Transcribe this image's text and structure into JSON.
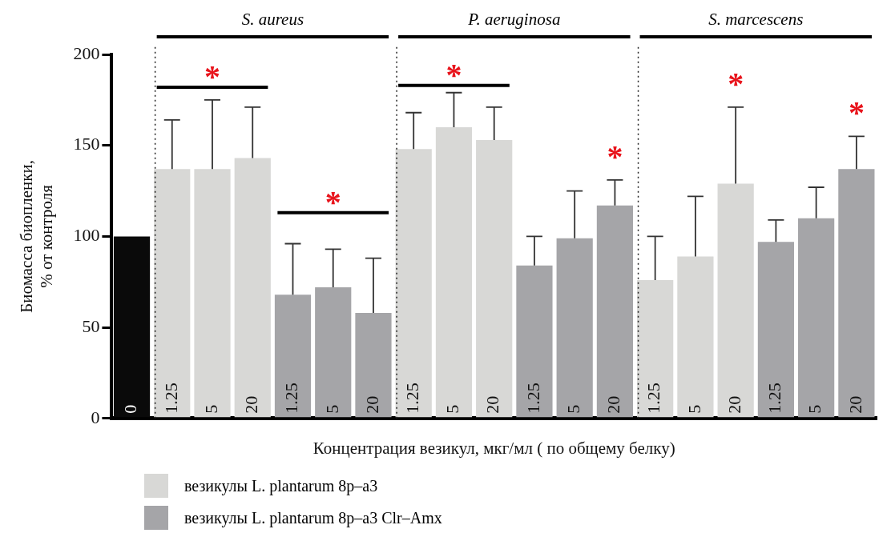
{
  "chart_data": {
    "type": "bar",
    "xlabel": "Концентрация везикул, мкг/мл ( по общему белку)",
    "ylabel": "Биомасса биопленки,\n% от контроля",
    "categories": [
      "0",
      "1.25",
      "5",
      "20",
      "1.25",
      "5",
      "20",
      "1.25",
      "5",
      "20",
      "1.25",
      "5",
      "20",
      "1.25",
      "5",
      "20",
      "1.25",
      "5",
      "20"
    ],
    "series": [
      {
        "color": "#0a0a0a",
        "values": [
          100,
          null,
          null,
          null,
          null,
          null,
          null,
          null,
          null,
          null,
          null,
          null,
          null,
          null,
          null,
          null,
          null,
          null,
          null
        ]
      },
      {
        "name": "везикулы L. plantarum 8p–a3",
        "color": "#d8d8d6",
        "values": [
          null,
          137,
          137,
          143,
          null,
          null,
          null,
          148,
          160,
          153,
          null,
          null,
          null,
          76,
          89,
          129,
          null,
          null,
          null
        ],
        "errors": [
          null,
          [
            137,
            164
          ],
          [
            137,
            175
          ],
          [
            143,
            171
          ],
          null,
          null,
          null,
          [
            148,
            168
          ],
          [
            160,
            179
          ],
          [
            153,
            171
          ],
          null,
          null,
          null,
          [
            76,
            100
          ],
          [
            89,
            122
          ],
          [
            129,
            171
          ],
          null,
          null,
          null
        ]
      },
      {
        "name": "везикулы L. plantarum 8p–a3 Clr–Amx",
        "color": "#a5a5a8",
        "values": [
          null,
          null,
          null,
          null,
          68,
          72,
          58,
          null,
          null,
          null,
          84,
          99,
          117,
          null,
          null,
          null,
          97,
          110,
          137
        ],
        "errors": [
          null,
          null,
          null,
          null,
          [
            68,
            96
          ],
          [
            72,
            93
          ],
          [
            58,
            88
          ],
          null,
          null,
          null,
          [
            84,
            100
          ],
          [
            99,
            125
          ],
          [
            117,
            131
          ],
          null,
          null,
          null,
          [
            97,
            109
          ],
          [
            110,
            127
          ],
          [
            137,
            155
          ]
        ]
      }
    ],
    "ylim": [
      0,
      200
    ],
    "yticks": [
      0,
      50,
      100,
      150,
      200
    ],
    "legend": "bottom left",
    "annotations": [
      "S. aureus",
      "P. aeruginosa",
      "S. marcescens",
      "*",
      "*",
      "*",
      "*",
      "*",
      "*"
    ]
  }
}
